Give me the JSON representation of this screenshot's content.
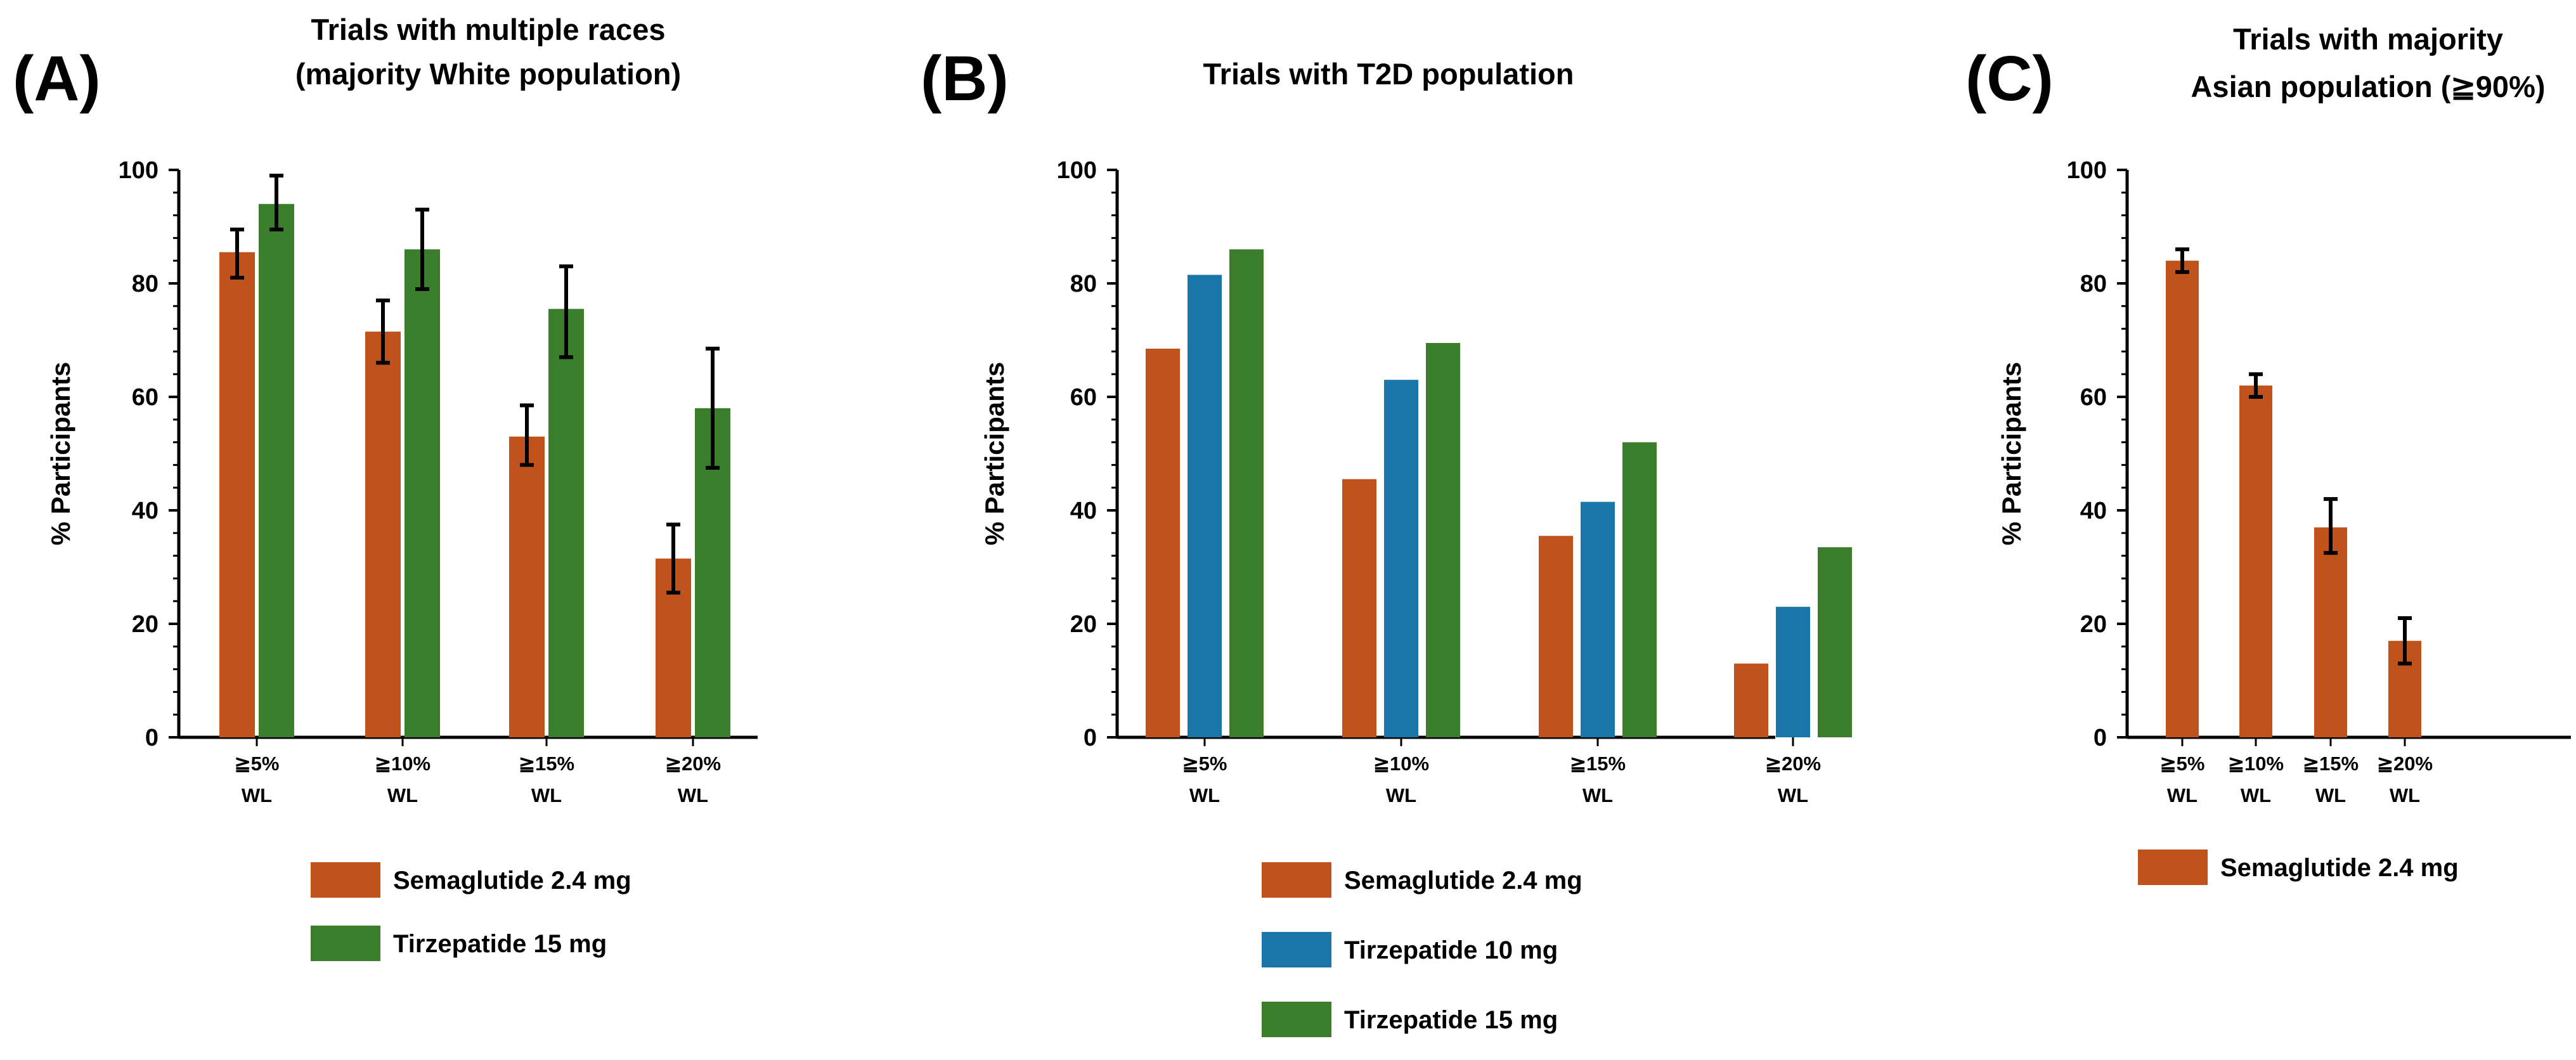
{
  "chart_data": [
    {
      "id": "A",
      "type": "bar",
      "panel_label": "(A)",
      "title": [
        "Trials with multiple races",
        "(majority White population)"
      ],
      "ylabel": "% Participants",
      "ylim": [
        0,
        100
      ],
      "yticks": [
        0,
        20,
        40,
        60,
        80,
        100
      ],
      "categories": [
        [
          "≧5%",
          "WL"
        ],
        [
          "≧10%",
          "WL"
        ],
        [
          "≧15%",
          "WL"
        ],
        [
          "≧20%",
          "WL"
        ]
      ],
      "series": [
        {
          "name": "Semaglutide 2.4 mg",
          "color": "#C0531C",
          "values": [
            85.5,
            71.5,
            53,
            31.5
          ],
          "err_low": [
            81,
            66,
            48,
            25.5
          ],
          "err_high": [
            89.5,
            77,
            58.5,
            37.5
          ]
        },
        {
          "name": "Tirzepatide 15 mg",
          "color": "#3A7D2B",
          "values": [
            94,
            86,
            75.5,
            58
          ],
          "err_low": [
            89.5,
            79,
            67,
            47.5
          ],
          "err_high": [
            99,
            93,
            83,
            68.5
          ]
        }
      ]
    },
    {
      "id": "B",
      "type": "bar",
      "panel_label": "(B)",
      "title": [
        "Trials with T2D population"
      ],
      "ylabel": "% Participants",
      "ylim": [
        0,
        100
      ],
      "yticks": [
        0,
        20,
        40,
        60,
        80,
        100
      ],
      "categories": [
        [
          "≧5%",
          "WL"
        ],
        [
          "≧10%",
          "WL"
        ],
        [
          "≧15%",
          "WL"
        ],
        [
          "≧20%",
          "WL"
        ]
      ],
      "series": [
        {
          "name": "Semaglutide 2.4 mg",
          "color": "#C0531C",
          "values": [
            68.5,
            45.5,
            35.5,
            13
          ]
        },
        {
          "name": "Tirzepatide 10 mg",
          "color": "#1A76A8",
          "values": [
            81.5,
            63,
            41.5,
            23
          ]
        },
        {
          "name": "Tirzepatide 15 mg",
          "color": "#3A7D2B",
          "values": [
            86,
            69.5,
            52,
            33.5
          ]
        }
      ]
    },
    {
      "id": "C",
      "type": "bar",
      "panel_label": "(C)",
      "title": [
        "Trials with majority",
        "Asian population (≧90%)"
      ],
      "ylabel": "% Participants",
      "ylim": [
        0,
        100
      ],
      "yticks": [
        0,
        20,
        40,
        60,
        80,
        100
      ],
      "categories": [
        [
          "≧5%",
          "WL"
        ],
        [
          "≧10%",
          "WL"
        ],
        [
          "≧15%",
          "WL"
        ],
        [
          "≧20%",
          "WL"
        ]
      ],
      "series": [
        {
          "name": "Semaglutide 2.4 mg",
          "color": "#C0531C",
          "values": [
            84,
            62,
            37,
            17
          ],
          "err_low": [
            82,
            60,
            32.5,
            13
          ],
          "err_high": [
            86,
            64,
            42,
            21
          ]
        }
      ]
    }
  ]
}
